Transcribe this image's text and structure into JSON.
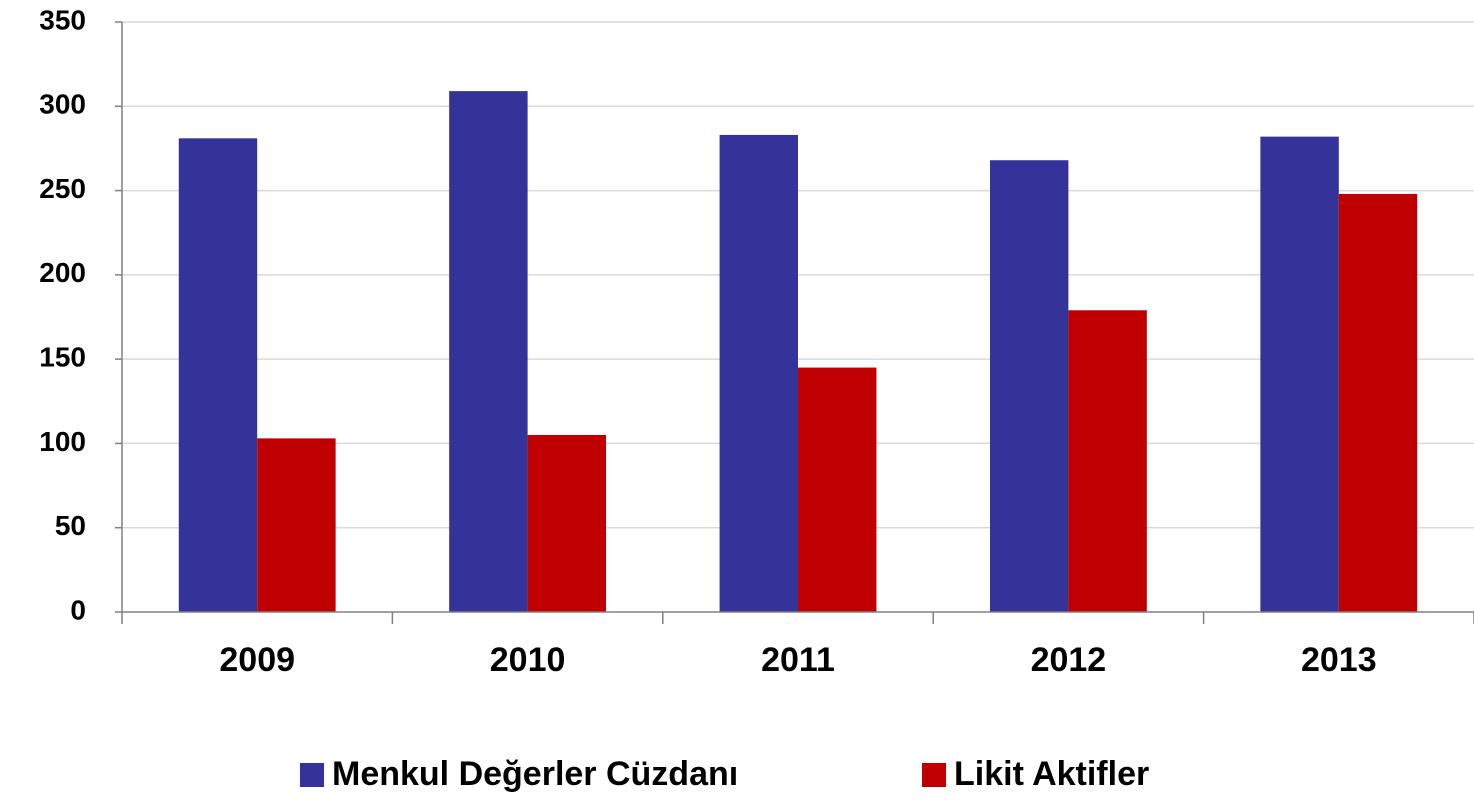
{
  "chart_data": {
    "type": "bar",
    "categories": [
      "2009",
      "2010",
      "2011",
      "2012",
      "2013"
    ],
    "series": [
      {
        "name": "Menkul Değerler Cüzdanı",
        "color": "#333399",
        "values": [
          281,
          309,
          283,
          268,
          282
        ]
      },
      {
        "name": "Likit Aktifler",
        "color": "#c00000",
        "values": [
          103,
          105,
          145,
          179,
          248
        ]
      }
    ],
    "ylim": [
      0,
      350
    ],
    "yticks": [
      0,
      50,
      100,
      150,
      200,
      250,
      300,
      350
    ],
    "grid": true,
    "legend": "bottom"
  }
}
